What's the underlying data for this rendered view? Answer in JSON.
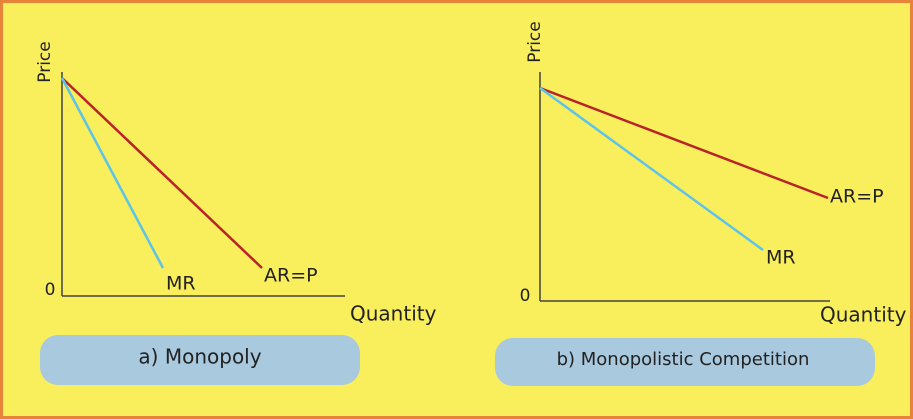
{
  "panels": [
    {
      "y_axis_label": "Price",
      "x_axis_label": "Quantity",
      "origin_label": "0",
      "curves": [
        {
          "label": "MR"
        },
        {
          "label": "AR=P"
        }
      ],
      "caption": "a) Monopoly"
    },
    {
      "y_axis_label": "Price",
      "x_axis_label": "Quantity",
      "origin_label": "0",
      "curves": [
        {
          "label": "MR"
        },
        {
          "label": "AR=P"
        }
      ],
      "caption": "b) Monopolistic Competition"
    }
  ]
}
